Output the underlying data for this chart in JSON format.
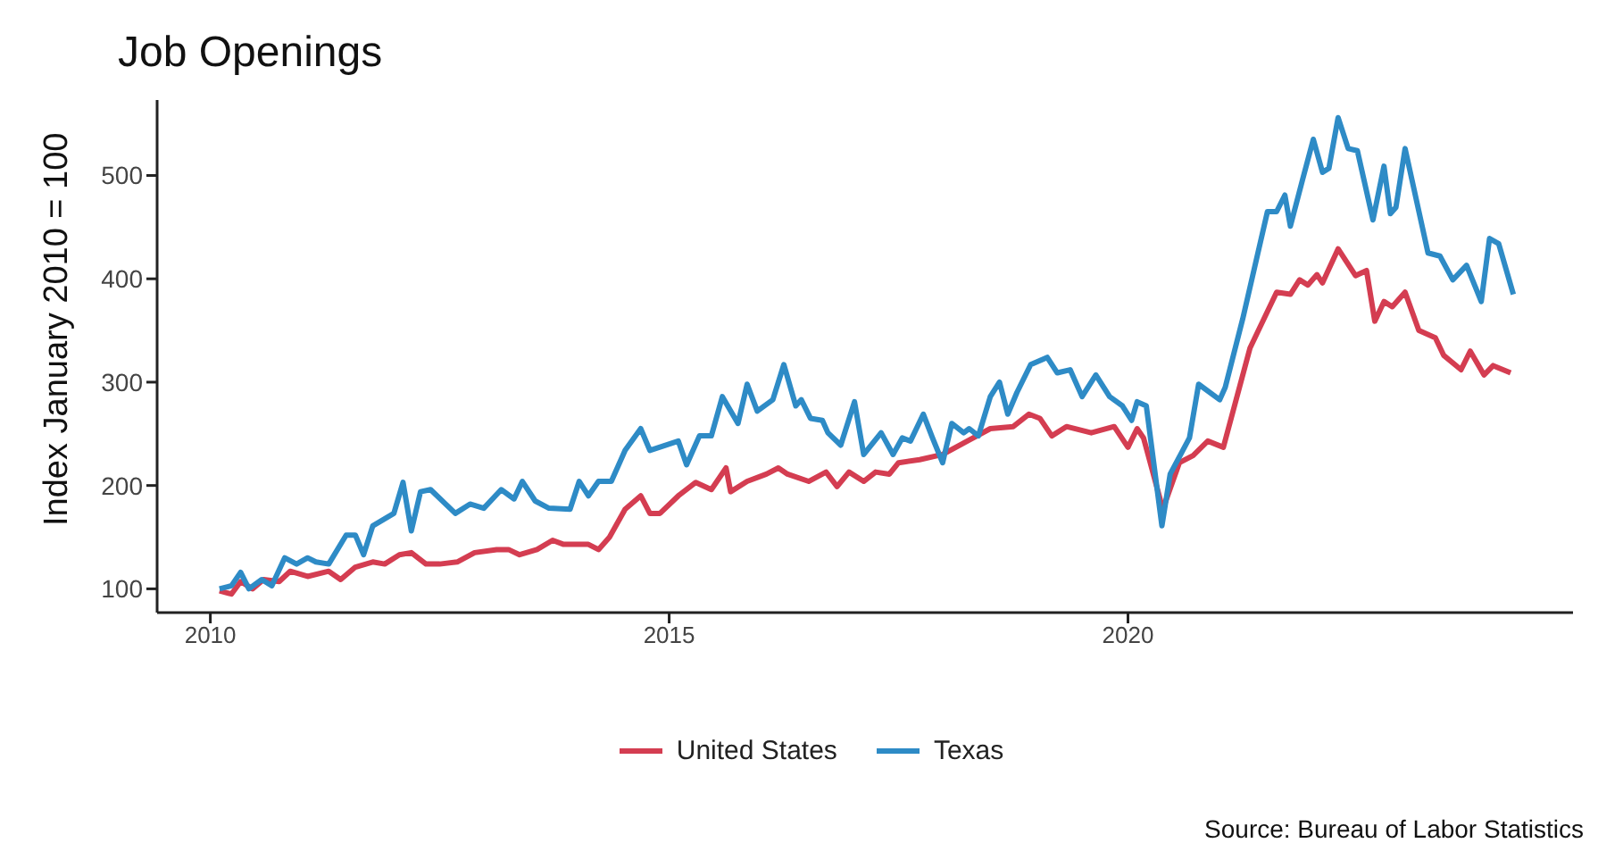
{
  "chart_data": {
    "type": "line",
    "title": "Job Openings",
    "ylabel": "Index January 2010 = 100",
    "annotations": [
      "Source: Bureau of Labor Statistics"
    ],
    "xlim": [
      2009.42,
      2024.85
    ],
    "xticks": [
      2010,
      2015,
      2020
    ],
    "ylim": [
      77,
      573
    ],
    "yticks": [
      100,
      200,
      300,
      400,
      500
    ],
    "grid": false,
    "legend": "bottom",
    "marker": "none",
    "line_style": "solid",
    "series": [
      {
        "name": "United States",
        "color": "#d43d51",
        "x": [
          2010.1,
          2010.23,
          2010.33,
          2010.46,
          2010.58,
          2010.75,
          2010.87,
          2011.06,
          2011.29,
          2011.42,
          2011.58,
          2011.77,
          2011.9,
          2012.06,
          2012.19,
          2012.35,
          2012.5,
          2012.69,
          2012.88,
          2013.12,
          2013.25,
          2013.37,
          2013.56,
          2013.73,
          2013.85,
          2014.12,
          2014.23,
          2014.35,
          2014.52,
          2014.69,
          2014.79,
          2014.9,
          2015.1,
          2015.29,
          2015.46,
          2015.62,
          2015.67,
          2015.85,
          2016.06,
          2016.19,
          2016.29,
          2016.52,
          2016.71,
          2016.83,
          2016.96,
          2017.12,
          2017.25,
          2017.4,
          2017.5,
          2017.73,
          2017.98,
          2018.25,
          2018.5,
          2018.75,
          2018.92,
          2019.04,
          2019.17,
          2019.33,
          2019.6,
          2019.85,
          2020.0,
          2020.1,
          2020.17,
          2020.38,
          2020.56,
          2020.71,
          2020.87,
          2021.04,
          2021.33,
          2021.62,
          2021.77,
          2021.87,
          2021.96,
          2022.06,
          2022.12,
          2022.29,
          2022.48,
          2022.6,
          2022.69,
          2022.79,
          2022.88,
          2023.02,
          2023.17,
          2023.35,
          2023.44,
          2023.63,
          2023.73,
          2023.88,
          2023.98,
          2024.17
        ],
        "values": [
          98,
          95,
          107,
          100,
          109,
          107,
          117,
          112,
          117,
          109,
          121,
          126,
          124,
          133,
          135,
          124,
          124,
          126,
          135,
          138,
          138,
          133,
          138,
          147,
          143,
          143,
          138,
          150,
          177,
          190,
          173,
          173,
          190,
          203,
          196,
          217,
          194,
          204,
          211,
          217,
          211,
          204,
          213,
          199,
          213,
          204,
          213,
          211,
          222,
          225,
          230,
          243,
          255,
          257,
          269,
          265,
          248,
          257,
          251,
          257,
          237,
          255,
          246,
          177,
          222,
          229,
          243,
          237,
          333,
          387,
          385,
          399,
          394,
          404,
          396,
          429,
          403,
          408,
          359,
          378,
          373,
          387,
          350,
          343,
          326,
          312,
          330,
          307,
          316,
          309
        ]
      },
      {
        "name": "Texas",
        "color": "#2e8bc6",
        "x": [
          2010.1,
          2010.23,
          2010.33,
          2010.42,
          2010.56,
          2010.67,
          2010.81,
          2010.94,
          2011.06,
          2011.15,
          2011.29,
          2011.48,
          2011.58,
          2011.67,
          2011.77,
          2012.0,
          2012.1,
          2012.19,
          2012.29,
          2012.4,
          2012.67,
          2012.83,
          2012.98,
          2013.17,
          2013.31,
          2013.4,
          2013.54,
          2013.69,
          2013.92,
          2014.02,
          2014.12,
          2014.23,
          2014.37,
          2014.52,
          2014.69,
          2014.79,
          2015.1,
          2015.19,
          2015.33,
          2015.46,
          2015.58,
          2015.75,
          2015.85,
          2015.96,
          2016.13,
          2016.25,
          2016.38,
          2016.44,
          2016.54,
          2016.67,
          2016.73,
          2016.87,
          2017.02,
          2017.12,
          2017.31,
          2017.44,
          2017.54,
          2017.63,
          2017.77,
          2017.87,
          2017.98,
          2018.08,
          2018.21,
          2018.27,
          2018.37,
          2018.5,
          2018.6,
          2018.69,
          2018.79,
          2018.94,
          2019.12,
          2019.23,
          2019.37,
          2019.5,
          2019.65,
          2019.8,
          2019.94,
          2020.04,
          2020.1,
          2020.2,
          2020.37,
          2020.46,
          2020.67,
          2020.77,
          2021.0,
          2021.06,
          2021.25,
          2021.52,
          2021.62,
          2021.71,
          2021.77,
          2021.9,
          2022.02,
          2022.12,
          2022.19,
          2022.29,
          2022.4,
          2022.5,
          2022.67,
          2022.79,
          2022.86,
          2022.92,
          2023.02,
          2023.27,
          2023.4,
          2023.54,
          2023.69,
          2023.85,
          2023.94,
          2024.04,
          2024.2
        ],
        "values": [
          100,
          103,
          116,
          100,
          109,
          103,
          130,
          124,
          130,
          126,
          124,
          152,
          152,
          133,
          161,
          173,
          203,
          156,
          194,
          196,
          173,
          182,
          178,
          196,
          187,
          204,
          185,
          178,
          177,
          204,
          190,
          204,
          204,
          234,
          255,
          234,
          243,
          220,
          248,
          248,
          286,
          260,
          298,
          272,
          283,
          317,
          277,
          283,
          265,
          263,
          251,
          239,
          281,
          230,
          251,
          230,
          246,
          243,
          269,
          246,
          222,
          260,
          251,
          255,
          248,
          286,
          300,
          269,
          290,
          317,
          324,
          309,
          312,
          286,
          307,
          286,
          277,
          263,
          281,
          277,
          161,
          211,
          246,
          298,
          283,
          295,
          361,
          465,
          465,
          481,
          451,
          495,
          535,
          503,
          507,
          556,
          526,
          524,
          457,
          509,
          463,
          469,
          526,
          425,
          422,
          399,
          413,
          378,
          439,
          434,
          385
        ]
      }
    ]
  }
}
